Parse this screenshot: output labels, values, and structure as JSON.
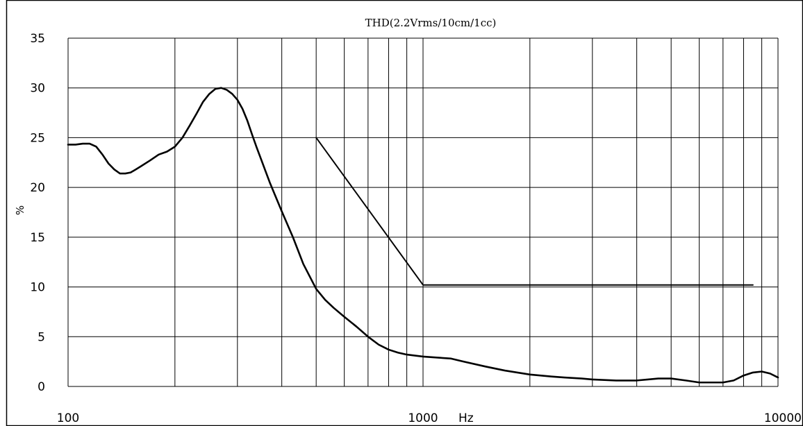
{
  "chart_data": {
    "type": "line",
    "title": "THD(2.2Vrms/10cm/1cc)",
    "xlabel": "Hz",
    "ylabel": "%",
    "x_scale": "log",
    "xlim": [
      100,
      10000
    ],
    "ylim": [
      0,
      35
    ],
    "x_tick_labels": [
      {
        "value": 100,
        "label": "100"
      },
      {
        "value": 1000,
        "label": "1000"
      },
      {
        "value": 10000,
        "label": "10000"
      }
    ],
    "y_ticks": [
      0,
      5,
      10,
      15,
      20,
      25,
      30,
      35
    ],
    "grid": true,
    "colors": {
      "line": "#000000",
      "grid": "#000000",
      "background": "#ffffff"
    },
    "series": [
      {
        "x": [
          100,
          105,
          110,
          115,
          120,
          125,
          130,
          135,
          140,
          145,
          150,
          155,
          160,
          170,
          180,
          190,
          200,
          210,
          220,
          230,
          240,
          250,
          260,
          270,
          280,
          290,
          300,
          310,
          320,
          330,
          340,
          350,
          370,
          400,
          430,
          460,
          500,
          530,
          560,
          600,
          650,
          700,
          750,
          800,
          850,
          900,
          1000,
          1100,
          1200,
          1300,
          1500,
          1700,
          2000,
          2300,
          2500,
          2800,
          3000,
          3500,
          4000,
          4300,
          4600,
          5000,
          5500,
          6000,
          6500,
          7000,
          7500,
          8000,
          8500,
          9000,
          9500,
          10000
        ],
        "y": [
          24.3,
          24.3,
          24.4,
          24.4,
          24.1,
          23.3,
          22.4,
          21.8,
          21.4,
          21.4,
          21.5,
          21.8,
          22.1,
          22.7,
          23.3,
          23.6,
          24.1,
          25.0,
          26.2,
          27.4,
          28.6,
          29.4,
          29.9,
          30.0,
          29.8,
          29.4,
          28.8,
          27.9,
          26.7,
          25.3,
          24.0,
          22.8,
          20.5,
          17.6,
          15.0,
          12.3,
          9.8,
          8.7,
          7.9,
          7.0,
          6.0,
          5.0,
          4.2,
          3.7,
          3.4,
          3.2,
          3.0,
          2.9,
          2.8,
          2.5,
          2.0,
          1.6,
          1.2,
          1.0,
          0.9,
          0.8,
          0.7,
          0.6,
          0.6,
          0.7,
          0.8,
          0.8,
          0.6,
          0.4,
          0.4,
          0.4,
          0.6,
          1.1,
          1.4,
          1.5,
          1.3,
          0.9
        ]
      },
      {
        "x": [
          500,
          1000,
          8500
        ],
        "y": [
          25,
          10.2,
          10.2
        ]
      }
    ]
  }
}
